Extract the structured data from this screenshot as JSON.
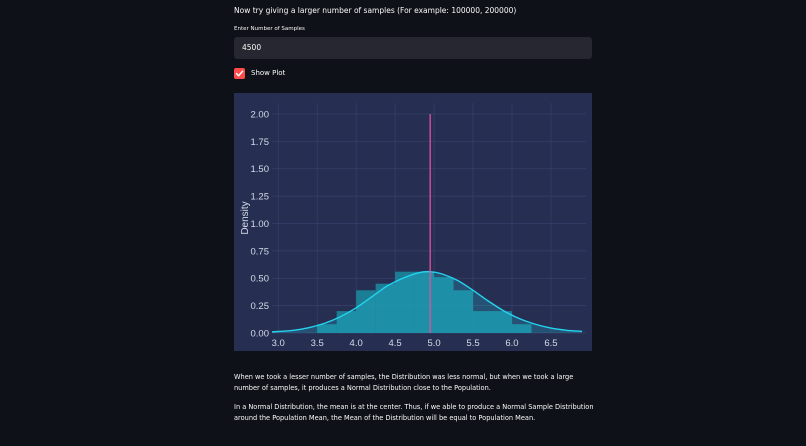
{
  "intro_text": "Now try giving a larger number of samples (For example: 100000, 200000)",
  "samples_input": {
    "label": "Enter Number of Samples",
    "value": "4500"
  },
  "show_plot": {
    "label": "Show Plot",
    "checked": true,
    "icon": "check-icon"
  },
  "chart_data": {
    "type": "bar",
    "ylabel": "Density",
    "xlabel": "",
    "xlim": [
      2.92,
      6.95
    ],
    "ylim": [
      0,
      2.1
    ],
    "x_ticks": [
      "3.0",
      "3.5",
      "4.0",
      "4.5",
      "5.0",
      "5.5",
      "6.0",
      "6.5"
    ],
    "y_ticks": [
      "0.00",
      "0.25",
      "0.50",
      "0.75",
      "1.00",
      "1.25",
      "1.50",
      "1.75",
      "2.00"
    ],
    "histogram": {
      "bin_edges": [
        3.5,
        3.75,
        4.0,
        4.25,
        4.5,
        4.75,
        5.0,
        5.25,
        5.5,
        5.75,
        6.0,
        6.25
      ],
      "values": [
        0.08,
        0.2,
        0.39,
        0.45,
        0.56,
        0.56,
        0.51,
        0.39,
        0.2,
        0.2,
        0.08
      ]
    },
    "kde": {
      "x": [
        2.92,
        3.2,
        3.4,
        3.6,
        3.8,
        4.0,
        4.2,
        4.4,
        4.6,
        4.8,
        4.95,
        5.1,
        5.3,
        5.5,
        5.7,
        5.9,
        6.1,
        6.3,
        6.5,
        6.7,
        6.9
      ],
      "y": [
        0.01,
        0.025,
        0.05,
        0.09,
        0.15,
        0.23,
        0.33,
        0.43,
        0.5,
        0.55,
        0.56,
        0.54,
        0.48,
        0.39,
        0.29,
        0.2,
        0.13,
        0.08,
        0.045,
        0.025,
        0.015
      ]
    },
    "vline": {
      "x": 4.95,
      "y_max": 2.0
    },
    "colors": {
      "background": "#262f52",
      "bars": "#1b8ca0",
      "kde": "#24d3ee",
      "vline": "#e44ea0",
      "grid": "#36406a"
    }
  },
  "paragraphs": [
    "When we took a lesser number of samples, the Distribution was less normal, but when we took a large number of samples, it produces a Normal Distribution close to the Population.",
    "In a Normal Distribution, the mean is at the center. Thus, if we able to produce a Normal Sample Distribution around the Population Mean, the Mean of the Distribution will be equal to Population Mean."
  ]
}
